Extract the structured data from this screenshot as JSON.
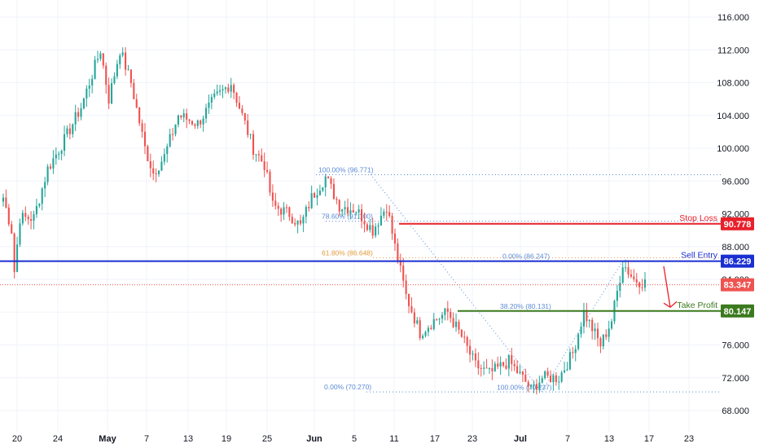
{
  "chart_data": {
    "type": "candlestick",
    "title": "",
    "xlabel": "",
    "ylabel": "",
    "ylim": [
      66.0,
      117.0
    ],
    "y_ticks": [
      "116.000",
      "112.000",
      "108.000",
      "104.000",
      "100.000",
      "96.000",
      "92.000",
      "88.000",
      "84.000",
      "80.000",
      "76.000",
      "72.000",
      "68.000"
    ],
    "x_ticks": [
      "20",
      "24",
      "May",
      "7",
      "13",
      "19",
      "25",
      "Jun",
      "5",
      "11",
      "17",
      "23",
      "Jul",
      "7",
      "13",
      "17",
      "23"
    ],
    "price_series": {
      "name": "",
      "anchors": [
        {
          "i": 0,
          "v": 94.0
        },
        {
          "i": 3,
          "v": 90.0
        },
        {
          "i": 4,
          "v": 85.0
        },
        {
          "i": 6,
          "v": 91.5
        },
        {
          "i": 11,
          "v": 91.5
        },
        {
          "i": 16,
          "v": 97.5
        },
        {
          "i": 22,
          "v": 101.0
        },
        {
          "i": 28,
          "v": 105.0
        },
        {
          "i": 35,
          "v": 112.0
        },
        {
          "i": 38,
          "v": 106.0
        },
        {
          "i": 42,
          "v": 112.0
        },
        {
          "i": 46,
          "v": 108.0
        },
        {
          "i": 51,
          "v": 100.0
        },
        {
          "i": 54,
          "v": 97.0
        },
        {
          "i": 58,
          "v": 99.0
        },
        {
          "i": 63,
          "v": 104.0
        },
        {
          "i": 70,
          "v": 103.0
        },
        {
          "i": 76,
          "v": 106.0
        },
        {
          "i": 82,
          "v": 108.0
        },
        {
          "i": 85,
          "v": 105.0
        },
        {
          "i": 90,
          "v": 100.0
        },
        {
          "i": 94,
          "v": 98.0
        },
        {
          "i": 97,
          "v": 93.0
        },
        {
          "i": 103,
          "v": 92.0
        },
        {
          "i": 107,
          "v": 90.5
        },
        {
          "i": 111,
          "v": 94.0
        },
        {
          "i": 116,
          "v": 96.5
        },
        {
          "i": 121,
          "v": 93.0
        },
        {
          "i": 127,
          "v": 92.5
        },
        {
          "i": 133,
          "v": 90.0
        },
        {
          "i": 138,
          "v": 93.0
        },
        {
          "i": 141,
          "v": 88.0
        },
        {
          "i": 145,
          "v": 82.0
        },
        {
          "i": 150,
          "v": 77.5
        },
        {
          "i": 155,
          "v": 79.0
        },
        {
          "i": 160,
          "v": 80.0
        },
        {
          "i": 165,
          "v": 77.0
        },
        {
          "i": 170,
          "v": 73.5
        },
        {
          "i": 175,
          "v": 72.5
        },
        {
          "i": 182,
          "v": 74.0
        },
        {
          "i": 188,
          "v": 71.5
        },
        {
          "i": 190,
          "v": 70.5
        },
        {
          "i": 194,
          "v": 72.0
        },
        {
          "i": 200,
          "v": 72.0
        },
        {
          "i": 205,
          "v": 75.0
        },
        {
          "i": 209,
          "v": 80.0
        },
        {
          "i": 215,
          "v": 76.0
        },
        {
          "i": 219,
          "v": 79.0
        },
        {
          "i": 223,
          "v": 86.0
        },
        {
          "i": 227,
          "v": 84.0
        },
        {
          "i": 231,
          "v": 83.6
        }
      ],
      "count": 232,
      "up_color": "#26a69a",
      "down_color": "#ef5350"
    },
    "fib_levels": [
      {
        "label": "100.00% (96.771)",
        "value": 96.771,
        "color": "#5b8bd6"
      },
      {
        "label": "78.60% (91.100)",
        "value": 91.1,
        "color": "#5b8bd6"
      },
      {
        "label": "61.80% (86.648)",
        "value": 86.648,
        "color": "#e39a3c"
      },
      {
        "label": "0.00% (70.270)",
        "value": 70.27,
        "color": "#5b8bd6"
      },
      {
        "label": "0.00% (86.247)",
        "value": 86.247,
        "color": "#5b8bd6"
      },
      {
        "label": "38.20% (80.131)",
        "value": 80.131,
        "color": "#5b8bd6"
      },
      {
        "label": "100.00% (70.237)",
        "value": 70.237,
        "color": "#5b8bd6"
      }
    ],
    "levels": [
      {
        "name": "Stop Loss",
        "value": 90.778,
        "badge": "90.778",
        "color": "#e8202a"
      },
      {
        "name": "Sell Entry",
        "value": 86.229,
        "badge": "86.229",
        "color": "#1a2fd1"
      },
      {
        "name": "Take Profit",
        "value": 80.147,
        "badge": "80.147",
        "color": "#3b7a1e"
      }
    ],
    "current_price": {
      "value": 83.347,
      "badge": "83.347",
      "color": "#ef5350"
    },
    "colors": {
      "grid": "#f0f3fa",
      "axis_text": "#131722",
      "arrow": "#e8202a"
    }
  }
}
